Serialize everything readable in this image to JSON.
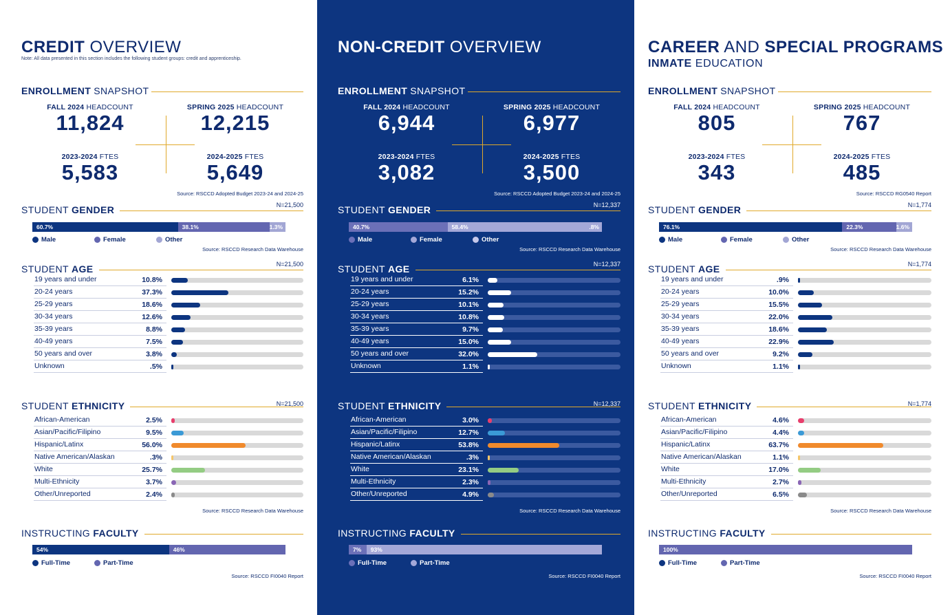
{
  "colors": {
    "navy": "#0d3580",
    "periwinkle": "#6366b0",
    "light": "#a2a6d4",
    "gold": "#e0a92a",
    "white": "#ffffff"
  },
  "columns": [
    {
      "title_bold": "CREDIT",
      "title_rest": " OVERVIEW",
      "note": "Note: All data presented in this section includes the following student groups: credit and apprenticeship.",
      "subtitle_bold": "",
      "subtitle_rest": "",
      "snapshot": {
        "section_bold": "ENROLLMENT",
        "section_rest": "SNAPSHOT",
        "fall_bold": "FALL 2024",
        "fall_rest": " HEADCOUNT",
        "fall_value": "11,824",
        "spring_bold": "SPRING 2025",
        "spring_rest": " HEADCOUNT",
        "spring_value": "12,215",
        "ftes1_bold": "2023-2024",
        "ftes1_rest": " FTES",
        "ftes1_value": "5,583",
        "ftes2_bold": "2024-2025",
        "ftes2_rest": " FTES",
        "ftes2_value": "5,649",
        "source": "Source: RSCCD Adopted Budget 2023-24 and 2024-25"
      },
      "gender": {
        "section_rest": "STUDENT ",
        "section_bold": "GENDER",
        "n": "N=21,500",
        "male": 60.7,
        "female": 38.1,
        "other": 1.3,
        "male_label": "60.7%",
        "female_label": "38.1%",
        "other_label": "1.3%",
        "legend": [
          "Male",
          "Female",
          "Other"
        ],
        "source": "Source: RSCCD Research Data Warehouse"
      },
      "age": {
        "section_rest": "STUDENT ",
        "section_bold": "AGE",
        "n": "N=21,500",
        "rows": [
          {
            "label": "19 years and under",
            "pct": "10.8%",
            "v": 10.8
          },
          {
            "label": "20-24 years",
            "pct": "37.3%",
            "v": 37.3
          },
          {
            "label": "25-29 years",
            "pct": "18.6%",
            "v": 18.6
          },
          {
            "label": "30-34 years",
            "pct": "12.6%",
            "v": 12.6
          },
          {
            "label": "35-39 years",
            "pct": "8.8%",
            "v": 8.8
          },
          {
            "label": "40-49 years",
            "pct": "7.5%",
            "v": 7.5
          },
          {
            "label": "50 years and over",
            "pct": "3.8%",
            "v": 3.8
          },
          {
            "label": "Unknown",
            "pct": ".5%",
            "v": 0.5
          }
        ]
      },
      "ethnicity": {
        "section_rest": "STUDENT ",
        "section_bold": "ETHNICITY",
        "n": "N=21,500",
        "rows": [
          {
            "label": "African-American",
            "pct": "2.5%",
            "v": 2.5
          },
          {
            "label": "Asian/Pacific/Filipino",
            "pct": "9.5%",
            "v": 9.5
          },
          {
            "label": "Hispanic/Latinx",
            "pct": "56.0%",
            "v": 56.0
          },
          {
            "label": "Native American/Alaskan",
            "pct": ".3%",
            "v": 0.3
          },
          {
            "label": "White",
            "pct": "25.7%",
            "v": 25.7
          },
          {
            "label": "Multi-Ethnicity",
            "pct": "3.7%",
            "v": 3.7
          },
          {
            "label": "Other/Unreported",
            "pct": "2.4%",
            "v": 2.4
          }
        ],
        "source": "Source: RSCCD Research Data Warehouse"
      },
      "faculty": {
        "section_rest": "INSTRUCTING ",
        "section_bold": "FACULTY",
        "full": 54,
        "part": 46,
        "full_label": "54%",
        "part_label": "46%",
        "legend": [
          "Full-Time",
          "Part-Time"
        ],
        "source": "Source: RSCCD FI0040 Report"
      }
    },
    {
      "title_bold": "NON-CREDIT",
      "title_rest": " OVERVIEW",
      "note": "",
      "subtitle_bold": "",
      "subtitle_rest": "",
      "snapshot": {
        "section_bold": "ENROLLMENT",
        "section_rest": "SNAPSHOT",
        "fall_bold": "FALL 2024",
        "fall_rest": " HEADCOUNT",
        "fall_value": "6,944",
        "spring_bold": "SPRING 2025",
        "spring_rest": " HEADCOUNT",
        "spring_value": "6,977",
        "ftes1_bold": "2023-2024",
        "ftes1_rest": " FTES",
        "ftes1_value": "3,082",
        "ftes2_bold": "2024-2025",
        "ftes2_rest": " FTES",
        "ftes2_value": "3,500",
        "source": "Source: RSCCD Adopted Budget 2023-24 and 2024-25"
      },
      "gender": {
        "section_rest": "STUDENT ",
        "section_bold": "GENDER",
        "n": "N=12,337",
        "male": 40.7,
        "female": 58.4,
        "other": 0.8,
        "male_label": "40.7%",
        "female_label": "58.4%",
        "other_label": ".8%",
        "legend": [
          "Male",
          "Female",
          "Other"
        ],
        "source": "Source: RSCCD Research Data Warehouse"
      },
      "age": {
        "section_rest": "STUDENT ",
        "section_bold": "AGE",
        "n": "N=12,337",
        "rows": [
          {
            "label": "19 years and under",
            "pct": "6.1%",
            "v": 6.1
          },
          {
            "label": "20-24 years",
            "pct": "15.2%",
            "v": 15.2
          },
          {
            "label": "25-29 years",
            "pct": "10.1%",
            "v": 10.1
          },
          {
            "label": "30-34 years",
            "pct": "10.8%",
            "v": 10.8
          },
          {
            "label": "35-39 years",
            "pct": "9.7%",
            "v": 9.7
          },
          {
            "label": "40-49 years",
            "pct": "15.0%",
            "v": 15.0
          },
          {
            "label": "50 years and over",
            "pct": "32.0%",
            "v": 32.0
          },
          {
            "label": "Unknown",
            "pct": "1.1%",
            "v": 1.1
          }
        ]
      },
      "ethnicity": {
        "section_rest": "STUDENT ",
        "section_bold": "ETHNICITY",
        "n": "N=12,337",
        "rows": [
          {
            "label": "African-American",
            "pct": "3.0%",
            "v": 3.0
          },
          {
            "label": "Asian/Pacific/Filipino",
            "pct": "12.7%",
            "v": 12.7
          },
          {
            "label": "Hispanic/Latinx",
            "pct": "53.8%",
            "v": 53.8
          },
          {
            "label": "Native American/Alaskan",
            "pct": ".3%",
            "v": 0.3
          },
          {
            "label": "White",
            "pct": "23.1%",
            "v": 23.1
          },
          {
            "label": "Multi-Ethnicity",
            "pct": "2.3%",
            "v": 2.3
          },
          {
            "label": "Other/Unreported",
            "pct": "4.9%",
            "v": 4.9
          }
        ],
        "source": "Source: RSCCD Research Data Warehouse"
      },
      "faculty": {
        "section_rest": "INSTRUCTING ",
        "section_bold": "FACULTY",
        "full": 7,
        "part": 93,
        "full_label": "7%",
        "part_label": "93%",
        "legend": [
          "Full-Time",
          "Part-Time"
        ],
        "source": "Source: RSCCD FI0040 Report"
      }
    },
    {
      "title_bold": "CAREER",
      "title_rest": " AND ",
      "title_bold2": "SPECIAL PROGRAMS",
      "note": "",
      "subtitle_bold": "INMATE",
      "subtitle_rest": " EDUCATION",
      "snapshot": {
        "section_bold": "ENROLLMENT",
        "section_rest": "SNAPSHOT",
        "fall_bold": "FALL 2024",
        "fall_rest": " HEADCOUNT",
        "fall_value": "805",
        "spring_bold": "SPRING 2025",
        "spring_rest": " HEADCOUNT",
        "spring_value": "767",
        "ftes1_bold": "2023-2024",
        "ftes1_rest": " FTES",
        "ftes1_value": "343",
        "ftes2_bold": "2024-2025",
        "ftes2_rest": " FTES",
        "ftes2_value": "485",
        "source": "Source: RSCCD RG0540 Report"
      },
      "gender": {
        "section_rest": "STUDENT ",
        "section_bold": "GENDER",
        "n": "N=1,774",
        "male": 76.1,
        "female": 22.3,
        "other": 1.6,
        "male_label": "76.1%",
        "female_label": "22.3%",
        "other_label": "1.6%",
        "legend": [
          "Male",
          "Female",
          "Other"
        ],
        "source": "Source: RSCCD Research Data Warehouse"
      },
      "age": {
        "section_rest": "STUDENT ",
        "section_bold": "AGE",
        "n": "N=1,774",
        "rows": [
          {
            "label": "19 years and under",
            "pct": ".9%",
            "v": 0.9
          },
          {
            "label": "20-24 years",
            "pct": "10.0%",
            "v": 10.0
          },
          {
            "label": "25-29 years",
            "pct": "15.5%",
            "v": 15.5
          },
          {
            "label": "30-34 years",
            "pct": "22.0%",
            "v": 22.0
          },
          {
            "label": "35-39 years",
            "pct": "18.6%",
            "v": 18.6
          },
          {
            "label": "40-49 years",
            "pct": "22.9%",
            "v": 22.9
          },
          {
            "label": "50 years and over",
            "pct": "9.2%",
            "v": 9.2
          },
          {
            "label": "Unknown",
            "pct": "1.1%",
            "v": 1.1
          }
        ]
      },
      "ethnicity": {
        "section_rest": "STUDENT ",
        "section_bold": "ETHNICITY",
        "n": "N=1,774",
        "rows": [
          {
            "label": "African-American",
            "pct": "4.6%",
            "v": 4.6
          },
          {
            "label": "Asian/Pacific/Filipino",
            "pct": "4.4%",
            "v": 4.4
          },
          {
            "label": "Hispanic/Latinx",
            "pct": "63.7%",
            "v": 63.7
          },
          {
            "label": "Native American/Alaskan",
            "pct": "1.1%",
            "v": 1.1
          },
          {
            "label": "White",
            "pct": "17.0%",
            "v": 17.0
          },
          {
            "label": "Multi-Ethnicity",
            "pct": "2.7%",
            "v": 2.7
          },
          {
            "label": "Other/Unreported",
            "pct": "6.5%",
            "v": 6.5
          }
        ],
        "source": "Source: RSCCD Research Data Warehouse"
      },
      "faculty": {
        "section_rest": "INSTRUCTING ",
        "section_bold": "FACULTY",
        "full": 0,
        "part": 100,
        "full_label": "",
        "part_label": "100%",
        "legend": [
          "Full-Time",
          "Part-Time"
        ],
        "source": "Source: RSCCD FI0040 Report"
      }
    }
  ],
  "ethnicity_colors": [
    "#e83e6c",
    "#3b9ad6",
    "#f08a2c",
    "#f5c66a",
    "#94cc83",
    "#8a66b5",
    "#8a8a8a"
  ]
}
